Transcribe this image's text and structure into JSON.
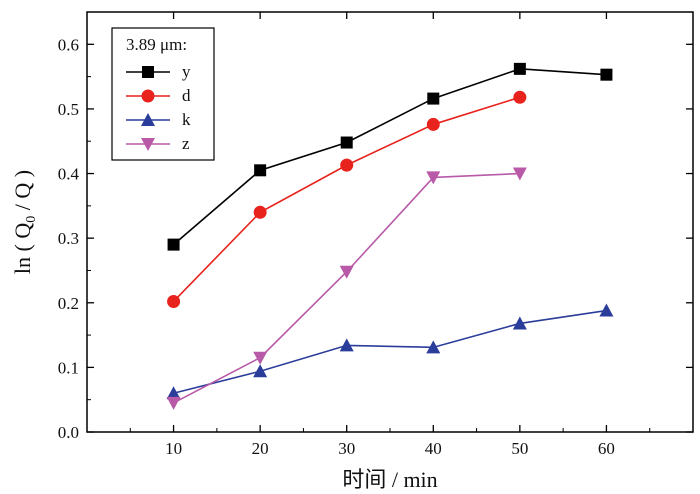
{
  "chart_data": {
    "type": "line",
    "title": "",
    "xlabel": "时间 / min",
    "ylabel_parts": {
      "prefix": "ln ( Q",
      "subscript": "0",
      "suffix": " / Q )"
    },
    "x": [
      10,
      20,
      30,
      40,
      50,
      60
    ],
    "xlim": [
      0,
      70
    ],
    "ylim": [
      0,
      0.65
    ],
    "xticks": [
      "10",
      "20",
      "30",
      "40",
      "50",
      "60"
    ],
    "yticks": [
      "0.0",
      "0.1",
      "0.2",
      "0.3",
      "0.4",
      "0.5",
      "0.6"
    ],
    "legend_title": "3.89 μm:",
    "legend_position": "top-left",
    "series": [
      {
        "name": "y",
        "color": "#000000",
        "marker": "square",
        "x": [
          10,
          20,
          30,
          40,
          50,
          60
        ],
        "values": [
          0.29,
          0.405,
          0.448,
          0.516,
          0.562,
          0.553
        ]
      },
      {
        "name": "d",
        "color": "#e8221c",
        "marker": "circle",
        "x": [
          10,
          20,
          30,
          40,
          50
        ],
        "values": [
          0.202,
          0.34,
          0.413,
          0.476,
          0.518
        ]
      },
      {
        "name": "k",
        "color": "#2b3d9a",
        "marker": "triangle-up",
        "x": [
          10,
          20,
          30,
          40,
          50,
          60
        ],
        "values": [
          0.06,
          0.094,
          0.134,
          0.131,
          0.168,
          0.188
        ]
      },
      {
        "name": "z",
        "color": "#b85aa8",
        "marker": "triangle-down",
        "x": [
          10,
          20,
          30,
          40,
          50
        ],
        "values": [
          0.045,
          0.115,
          0.248,
          0.394,
          0.4
        ]
      }
    ]
  }
}
